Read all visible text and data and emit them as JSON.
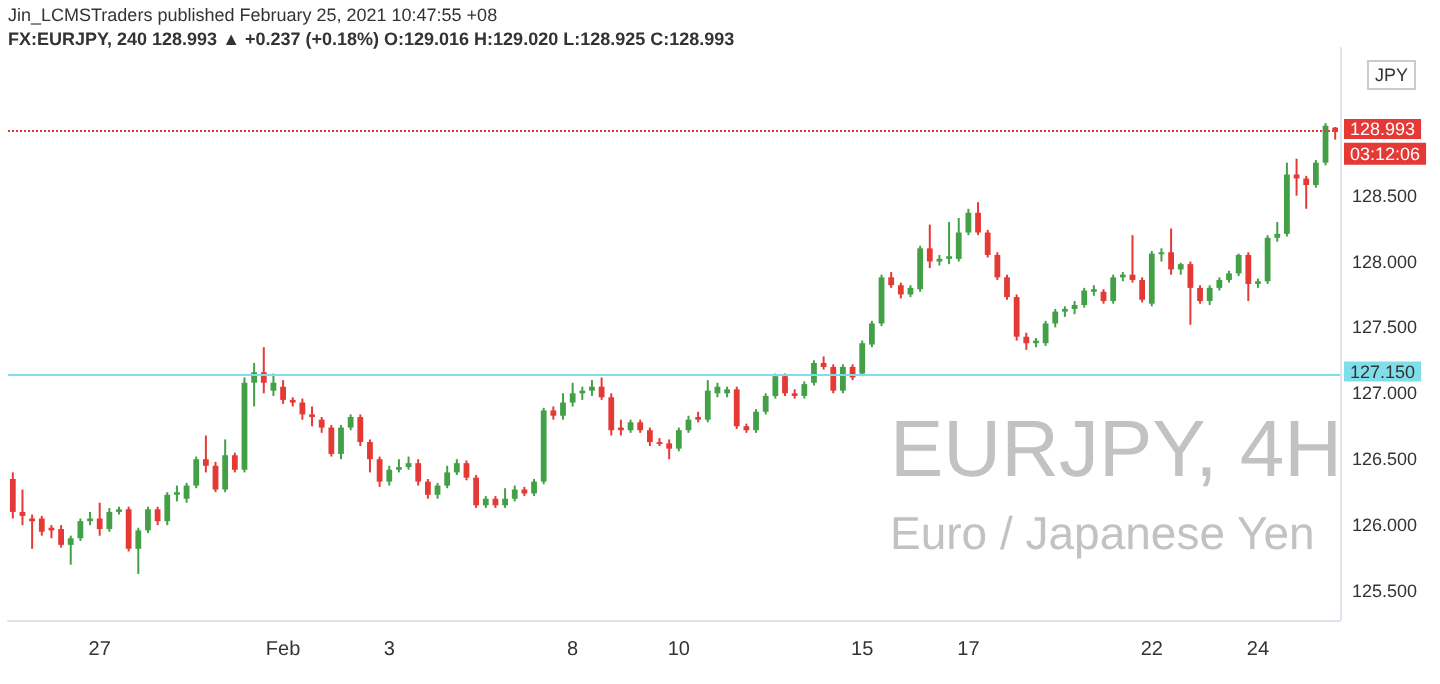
{
  "chart_data": {
    "type": "candlestick",
    "title": "EURJPY, 4H",
    "subtitle": "Euro / Japanese Yen",
    "annotations": [
      "Jin_LCMSTraders published February 25, 2021 10:47:55 +08",
      "FX:EURJPY, 240 128.993 ▲ +0.237 (+0.18%) O:129.016 H:129.020 L:128.925 C:128.993",
      "JPY",
      "03:12:06"
    ],
    "colors": [
      "#e53935",
      "#e53935",
      "#e53935",
      "#e53935",
      "#e53935",
      "#e53935",
      "#43a047",
      "#43a047",
      "#43a047",
      "#e53935",
      "#43a047",
      "#43a047",
      "#e53935",
      "#43a047",
      "#43a047",
      "#e53935",
      "#43a047",
      "#43a047",
      "#43a047",
      "#43a047",
      "#e53935",
      "#e53935",
      "#43a047",
      "#e53935",
      "#43a047",
      "#43a047",
      "#e53935",
      "#43a047",
      "#e53935",
      "#e53935",
      "#e53935",
      "#e53935",
      "#e53935",
      "#e53935",
      "#43a047",
      "#43a047",
      "#e53935",
      "#e53935",
      "#e53935",
      "#43a047",
      "#43a047",
      "#43a047",
      "#e53935",
      "#e53935",
      "#43a047",
      "#43a047",
      "#43a047",
      "#e53935",
      "#e53935",
      "#43a047",
      "#e53935",
      "#43a047",
      "#43a047",
      "#e53935",
      "#43a047",
      "#43a047",
      "#e53935",
      "#43a047",
      "#43a047",
      "#43a047",
      "#43a047",
      "#e53935",
      "#e53935",
      "#e53935",
      "#43a047",
      "#e53935",
      "#e53935",
      "#e53935",
      "#e53935",
      "#43a047",
      "#43a047",
      "#e53935",
      "#43a047",
      "#43a047",
      "#43a047",
      "#e53935",
      "#e53935",
      "#43a047",
      "#43a047",
      "#43a047",
      "#e53935",
      "#e53935",
      "#43a047",
      "#43a047",
      "#e53935",
      "#e53935",
      "#43a047",
      "#e53935",
      "#43a047",
      "#43a047",
      "#43a047",
      "#e53935",
      "#e53935",
      "#43a047",
      "#43a047",
      "#e53935",
      "#43a047",
      "#43a047",
      "#43a047",
      "#43a047",
      "#e53935",
      "#e53935",
      "#e53935",
      "#e53935",
      "#e53935",
      "#e53935",
      "#43a047",
      "#43a047",
      "#43a047",
      "#43a047",
      "#43a047",
      "#43a047",
      "#43a047",
      "#e53935",
      "#43a047",
      "#43a047",
      "#e53935",
      "#e53935",
      "#43a047",
      "#43a047",
      "#e53935",
      "#43a047",
      "#e53935",
      "#e53935",
      "#43a047",
      "#43a047",
      "#43a047",
      "#43a047",
      "#e53935",
      "#43a047",
      "#43a047",
      "#43a047",
      "#43a047",
      "#e53935",
      "#e53935",
      "#43a047",
      "#43a047",
      "#e53935"
    ],
    "categories": [
      null,
      null,
      null,
      null,
      null,
      null,
      null,
      null,
      null,
      "27",
      null,
      null,
      null,
      null,
      null,
      null,
      null,
      null,
      null,
      null,
      null,
      null,
      null,
      null,
      null,
      null,
      null,
      null,
      "Feb",
      null,
      null,
      null,
      null,
      null,
      null,
      null,
      null,
      null,
      null,
      "3",
      null,
      null,
      null,
      null,
      null,
      null,
      null,
      null,
      null,
      null,
      null,
      null,
      null,
      null,
      null,
      null,
      null,
      null,
      "8",
      null,
      null,
      null,
      null,
      null,
      null,
      null,
      null,
      null,
      null,
      "10",
      null,
      null,
      null,
      null,
      null,
      null,
      null,
      null,
      null,
      null,
      null,
      null,
      null,
      null,
      null,
      null,
      null,
      null,
      "15",
      null,
      null,
      null,
      null,
      null,
      null,
      null,
      null,
      null,
      null,
      "17",
      null,
      null,
      null,
      null,
      null,
      null,
      null,
      null,
      null,
      null,
      null,
      null,
      null,
      null,
      null,
      null,
      null,
      null,
      "22",
      null,
      null,
      null,
      null,
      null,
      null,
      null,
      null,
      null,
      null,
      "24",
      null,
      null,
      null,
      null,
      null,
      null,
      null,
      null
    ],
    "ohlc": [
      [
        126.35,
        126.4,
        126.05,
        126.1
      ],
      [
        126.1,
        126.27,
        126.0,
        126.07
      ],
      [
        126.05,
        126.08,
        125.82,
        126.03
      ],
      [
        126.05,
        126.07,
        125.92,
        125.95
      ],
      [
        125.98,
        126.0,
        125.9,
        125.96
      ],
      [
        125.97,
        126.0,
        125.83,
        125.85
      ],
      [
        125.85,
        125.92,
        125.7,
        125.9
      ],
      [
        125.9,
        126.05,
        125.88,
        126.03
      ],
      [
        126.03,
        126.1,
        126.0,
        126.05
      ],
      [
        126.05,
        126.17,
        125.92,
        125.97
      ],
      [
        125.97,
        126.13,
        125.95,
        126.1
      ],
      [
        126.1,
        126.14,
        126.08,
        126.12
      ],
      [
        126.12,
        126.14,
        125.8,
        125.82
      ],
      [
        125.82,
        125.98,
        125.63,
        125.96
      ],
      [
        125.96,
        126.14,
        125.94,
        126.12
      ],
      [
        126.12,
        126.14,
        126.0,
        126.03
      ],
      [
        126.03,
        126.25,
        126.0,
        126.23
      ],
      [
        126.23,
        126.3,
        126.18,
        126.25
      ],
      [
        126.2,
        126.32,
        126.17,
        126.3
      ],
      [
        126.3,
        126.52,
        126.28,
        126.5
      ],
      [
        126.5,
        126.68,
        126.4,
        126.45
      ],
      [
        126.45,
        126.48,
        126.25,
        126.27
      ],
      [
        126.27,
        126.65,
        126.25,
        126.53
      ],
      [
        126.53,
        126.55,
        126.4,
        126.42
      ],
      [
        126.42,
        127.12,
        126.4,
        127.08
      ],
      [
        127.08,
        127.23,
        126.9,
        127.16
      ],
      [
        127.16,
        127.35,
        127.0,
        127.08
      ],
      [
        127.02,
        127.15,
        126.98,
        127.08
      ],
      [
        127.05,
        127.1,
        126.92,
        126.95
      ],
      [
        126.95,
        126.97,
        126.9,
        126.93
      ],
      [
        126.93,
        126.96,
        126.8,
        126.84
      ],
      [
        126.84,
        126.9,
        126.75,
        126.82
      ],
      [
        126.8,
        126.82,
        126.7,
        126.74
      ],
      [
        126.74,
        126.76,
        126.52,
        126.54
      ],
      [
        126.54,
        126.76,
        126.5,
        126.74
      ],
      [
        126.74,
        126.84,
        126.72,
        126.82
      ],
      [
        126.82,
        126.84,
        126.6,
        126.63
      ],
      [
        126.63,
        126.65,
        126.4,
        126.5
      ],
      [
        126.5,
        126.52,
        126.29,
        126.33
      ],
      [
        126.33,
        126.45,
        126.3,
        126.42
      ],
      [
        126.42,
        126.5,
        126.4,
        126.44
      ],
      [
        126.44,
        126.52,
        126.42,
        126.47
      ],
      [
        126.47,
        126.5,
        126.3,
        126.33
      ],
      [
        126.33,
        126.35,
        126.2,
        126.23
      ],
      [
        126.23,
        126.32,
        126.2,
        126.3
      ],
      [
        126.3,
        126.45,
        126.28,
        126.4
      ],
      [
        126.4,
        126.5,
        126.38,
        126.47
      ],
      [
        126.47,
        126.49,
        126.34,
        126.36
      ],
      [
        126.36,
        126.38,
        126.13,
        126.15
      ],
      [
        126.15,
        126.22,
        126.13,
        126.2
      ],
      [
        126.2,
        126.22,
        126.13,
        126.15
      ],
      [
        126.15,
        126.28,
        126.13,
        126.2
      ],
      [
        126.2,
        126.3,
        126.18,
        126.27
      ],
      [
        126.27,
        126.29,
        126.22,
        126.24
      ],
      [
        126.24,
        126.35,
        126.22,
        126.33
      ],
      [
        126.33,
        126.89,
        126.31,
        126.87
      ],
      [
        126.87,
        126.9,
        126.8,
        126.83
      ],
      [
        126.83,
        127.0,
        126.8,
        126.93
      ],
      [
        126.93,
        127.08,
        126.9,
        127.0
      ],
      [
        127.0,
        127.05,
        126.95,
        127.02
      ],
      [
        127.02,
        127.1,
        126.98,
        127.05
      ],
      [
        127.05,
        127.12,
        126.95,
        126.97
      ],
      [
        126.97,
        127.0,
        126.68,
        126.72
      ],
      [
        126.74,
        126.8,
        126.68,
        126.72
      ],
      [
        126.72,
        126.8,
        126.7,
        126.78
      ],
      [
        126.78,
        126.8,
        126.7,
        126.72
      ],
      [
        126.72,
        126.74,
        126.6,
        126.63
      ],
      [
        126.63,
        126.66,
        126.6,
        126.62
      ],
      [
        126.62,
        126.65,
        126.5,
        126.58
      ],
      [
        126.58,
        126.74,
        126.56,
        126.72
      ],
      [
        126.72,
        126.83,
        126.7,
        126.8
      ],
      [
        126.82,
        126.86,
        126.78,
        126.8
      ],
      [
        126.8,
        127.1,
        126.78,
        127.02
      ],
      [
        127.0,
        127.08,
        126.97,
        127.05
      ],
      [
        127.0,
        127.05,
        126.97,
        127.03
      ],
      [
        127.03,
        127.05,
        126.73,
        126.75
      ],
      [
        126.75,
        126.77,
        126.7,
        126.72
      ],
      [
        126.72,
        126.88,
        126.7,
        126.86
      ],
      [
        126.86,
        127.0,
        126.84,
        126.98
      ],
      [
        126.98,
        127.15,
        126.96,
        127.13
      ],
      [
        127.13,
        127.15,
        126.98,
        127.0
      ],
      [
        127.0,
        127.03,
        126.96,
        126.98
      ],
      [
        126.98,
        127.09,
        126.96,
        127.07
      ],
      [
        127.08,
        127.25,
        127.06,
        127.23
      ],
      [
        127.23,
        127.28,
        127.18,
        127.2
      ],
      [
        127.2,
        127.22,
        127.0,
        127.02
      ],
      [
        127.02,
        127.22,
        127.0,
        127.2
      ],
      [
        127.2,
        127.22,
        127.1,
        127.12
      ],
      [
        127.15,
        127.4,
        127.13,
        127.38
      ],
      [
        127.37,
        127.55,
        127.35,
        127.53
      ],
      [
        127.53,
        127.9,
        127.51,
        127.88
      ],
      [
        127.88,
        127.92,
        127.8,
        127.82
      ],
      [
        127.82,
        127.84,
        127.72,
        127.75
      ],
      [
        127.75,
        127.82,
        127.73,
        127.8
      ],
      [
        127.79,
        128.12,
        127.77,
        128.1
      ],
      [
        128.1,
        128.28,
        127.95,
        128.0
      ],
      [
        128.0,
        128.05,
        127.97,
        128.02
      ],
      [
        128.02,
        128.3,
        127.98,
        128.04
      ],
      [
        128.02,
        128.33,
        128.0,
        128.22
      ],
      [
        128.22,
        128.4,
        128.2,
        128.37
      ],
      [
        128.37,
        128.45,
        128.2,
        128.22
      ],
      [
        128.22,
        128.24,
        128.03,
        128.05
      ],
      [
        128.05,
        128.07,
        127.86,
        127.88
      ],
      [
        127.88,
        127.9,
        127.71,
        127.73
      ],
      [
        127.73,
        127.75,
        127.4,
        127.43
      ],
      [
        127.43,
        127.46,
        127.33,
        127.38
      ],
      [
        127.38,
        127.42,
        127.35,
        127.4
      ],
      [
        127.38,
        127.55,
        127.36,
        127.53
      ],
      [
        127.53,
        127.64,
        127.5,
        127.62
      ],
      [
        127.62,
        127.66,
        127.58,
        127.64
      ],
      [
        127.64,
        127.7,
        127.6,
        127.67
      ],
      [
        127.67,
        127.8,
        127.65,
        127.78
      ],
      [
        127.77,
        127.82,
        127.74,
        127.79
      ],
      [
        127.77,
        127.79,
        127.68,
        127.7
      ],
      [
        127.7,
        127.9,
        127.68,
        127.88
      ],
      [
        127.88,
        127.92,
        127.85,
        127.9
      ],
      [
        127.9,
        128.2,
        127.84,
        127.86
      ],
      [
        127.86,
        127.88,
        127.69,
        127.71
      ],
      [
        127.68,
        128.08,
        127.66,
        128.06
      ],
      [
        128.06,
        128.1,
        128.0,
        128.07
      ],
      [
        128.07,
        128.25,
        127.9,
        127.94
      ],
      [
        127.94,
        127.99,
        127.9,
        127.98
      ],
      [
        127.98,
        128.0,
        127.52,
        127.8
      ],
      [
        127.8,
        127.82,
        127.68,
        127.7
      ],
      [
        127.7,
        127.82,
        127.67,
        127.8
      ],
      [
        127.8,
        127.88,
        127.78,
        127.86
      ],
      [
        127.86,
        127.93,
        127.84,
        127.91
      ],
      [
        127.91,
        128.06,
        127.89,
        128.05
      ],
      [
        128.05,
        128.07,
        127.7,
        127.83
      ],
      [
        127.83,
        127.87,
        127.8,
        127.85
      ],
      [
        127.85,
        128.2,
        127.83,
        128.18
      ],
      [
        128.18,
        128.3,
        128.15,
        128.21
      ],
      [
        128.21,
        128.75,
        128.19,
        128.66
      ],
      [
        128.66,
        128.78,
        128.5,
        128.63
      ],
      [
        128.63,
        128.65,
        128.4,
        128.58
      ],
      [
        128.58,
        128.77,
        128.56,
        128.75
      ],
      [
        128.75,
        129.05,
        128.73,
        129.03
      ],
      [
        129.016,
        129.02,
        128.925,
        128.993
      ]
    ],
    "ylim": [
      125.28,
      129.62
    ],
    "yticks": [
      {
        "value": 125.5,
        "label": "125.500"
      },
      {
        "value": 126.0,
        "label": "126.000"
      },
      {
        "value": 126.5,
        "label": "126.500"
      },
      {
        "value": 127.0,
        "label": "127.000"
      },
      {
        "value": 127.5,
        "label": "127.500"
      },
      {
        "value": 128.0,
        "label": "128.000"
      },
      {
        "value": 128.5,
        "label": "128.500"
      }
    ],
    "ref_lines": [
      {
        "axis": "y",
        "value": 127.15,
        "label": "127.150",
        "color": "#80deea",
        "line_style": "solid"
      },
      {
        "axis": "y",
        "value": 128.993,
        "label": "128.993",
        "color": "#e53935",
        "line_style": "dotted"
      }
    ],
    "grid": false
  }
}
